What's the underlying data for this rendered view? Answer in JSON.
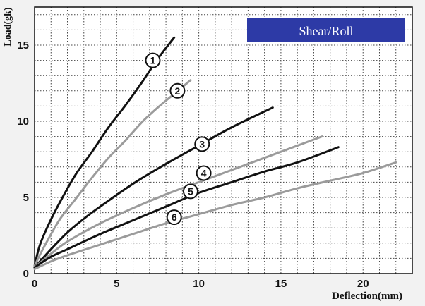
{
  "chart_data": {
    "type": "line",
    "title": "Shear/Roll",
    "xlabel": "Deflection(mm)",
    "ylabel": "Load(gk)",
    "xlim": [
      0,
      23
    ],
    "ylim": [
      0,
      17.5
    ],
    "xticks": [
      0,
      5,
      10,
      15,
      20
    ],
    "yticks": [
      0,
      5,
      10,
      15
    ],
    "grid": true,
    "colors": {
      "background": "#f2f2f2",
      "plot_area": "#ffffff",
      "grid": "#444444",
      "title_box": "#2d3aa6",
      "title_text": "#ffffff",
      "dark_series": "#111111",
      "gray_series": "#9b9b9b"
    },
    "series": [
      {
        "marker": "1",
        "color": "#111111",
        "x": [
          0,
          0.3,
          0.8,
          1.5,
          2.5,
          3.5,
          4.5,
          5.5,
          6.5,
          7.5,
          8.5
        ],
        "y": [
          0.5,
          1.8,
          3.1,
          4.6,
          6.5,
          8.0,
          9.6,
          11.0,
          12.5,
          14.1,
          15.5
        ],
        "label_x": 7.2,
        "label_y": 14.0
      },
      {
        "marker": "2",
        "color": "#9b9b9b",
        "x": [
          0,
          0.5,
          1.5,
          2.5,
          3.5,
          4.5,
          5.5,
          6.5,
          7.5,
          8.5,
          9.5
        ],
        "y": [
          0.5,
          1.6,
          3.5,
          4.9,
          6.3,
          7.6,
          8.7,
          9.9,
          10.9,
          11.8,
          12.7
        ],
        "label_x": 8.7,
        "label_y": 12.0
      },
      {
        "marker": "3",
        "color": "#111111",
        "x": [
          0,
          1,
          2,
          3,
          4,
          6,
          8,
          10,
          12,
          14.5
        ],
        "y": [
          0.4,
          1.6,
          2.7,
          3.6,
          4.4,
          5.9,
          7.2,
          8.4,
          9.6,
          10.9
        ],
        "label_x": 10.2,
        "label_y": 8.5
      },
      {
        "marker": "4",
        "color": "#9b9b9b",
        "x": [
          0,
          1,
          2,
          4,
          6,
          8,
          10,
          12,
          14,
          16,
          17.5
        ],
        "y": [
          0.4,
          1.3,
          2.1,
          3.3,
          4.3,
          5.2,
          6.0,
          6.8,
          7.6,
          8.4,
          9.0
        ],
        "label_x": 10.3,
        "label_y": 6.6
      },
      {
        "marker": "5",
        "color": "#111111",
        "x": [
          0,
          1,
          2,
          4,
          6,
          8,
          10,
          12,
          14,
          16,
          18.5
        ],
        "y": [
          0.4,
          1.1,
          1.6,
          2.6,
          3.5,
          4.4,
          5.3,
          6.0,
          6.7,
          7.3,
          8.3
        ],
        "label_x": 9.5,
        "label_y": 5.4
      },
      {
        "marker": "6",
        "color": "#9b9b9b",
        "x": [
          0,
          1,
          2,
          4,
          6,
          8,
          10,
          12,
          14,
          16,
          18,
          20,
          22
        ],
        "y": [
          0.3,
          0.8,
          1.2,
          1.9,
          2.6,
          3.3,
          3.9,
          4.5,
          5.0,
          5.6,
          6.1,
          6.6,
          7.3
        ],
        "label_x": 8.5,
        "label_y": 3.7
      }
    ]
  }
}
